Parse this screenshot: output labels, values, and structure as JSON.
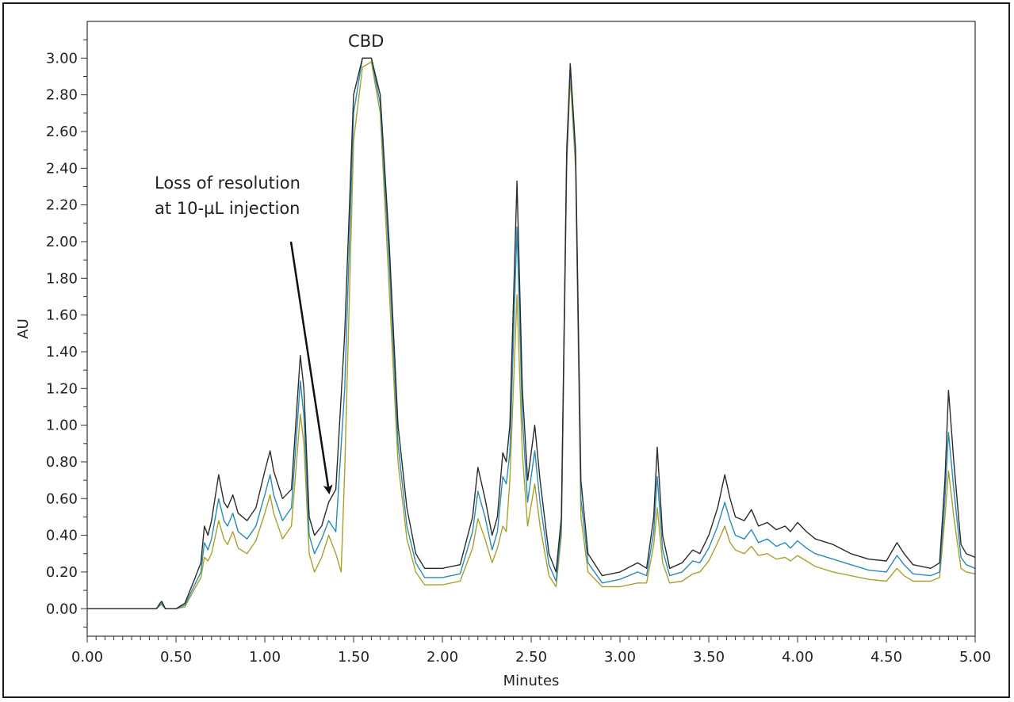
{
  "chart_data": {
    "type": "line",
    "title": "",
    "xlabel": "Minutes",
    "ylabel": "AU",
    "xlim": [
      0,
      5
    ],
    "ylim": [
      -0.15,
      3.2
    ],
    "x_ticks": [
      "0.00",
      "0.50",
      "1.00",
      "1.50",
      "2.00",
      "2.50",
      "3.00",
      "3.50",
      "4.00",
      "4.50",
      "5.00"
    ],
    "y_ticks": [
      "0.00",
      "0.20",
      "0.40",
      "0.60",
      "0.80",
      "1.00",
      "1.20",
      "1.40",
      "1.60",
      "1.80",
      "2.00",
      "2.20",
      "2.40",
      "2.60",
      "2.80",
      "3.00"
    ],
    "grid": false,
    "legend": "none",
    "series": [
      {
        "color": "#2b2b2b",
        "points": [
          [
            0,
            0
          ],
          [
            0.39,
            0
          ],
          [
            0.41,
            0.03
          ],
          [
            0.42,
            0.04
          ],
          [
            0.44,
            0
          ],
          [
            0.5,
            0
          ],
          [
            0.55,
            0.03
          ],
          [
            0.6,
            0.15
          ],
          [
            0.64,
            0.25
          ],
          [
            0.66,
            0.45
          ],
          [
            0.68,
            0.4
          ],
          [
            0.7,
            0.48
          ],
          [
            0.74,
            0.73
          ],
          [
            0.77,
            0.58
          ],
          [
            0.79,
            0.55
          ],
          [
            0.82,
            0.62
          ],
          [
            0.85,
            0.52
          ],
          [
            0.9,
            0.48
          ],
          [
            0.95,
            0.55
          ],
          [
            1.0,
            0.75
          ],
          [
            1.03,
            0.86
          ],
          [
            1.05,
            0.75
          ],
          [
            1.1,
            0.6
          ],
          [
            1.15,
            0.65
          ],
          [
            1.2,
            1.38
          ],
          [
            1.22,
            1.2
          ],
          [
            1.25,
            0.5
          ],
          [
            1.28,
            0.4
          ],
          [
            1.32,
            0.45
          ],
          [
            1.36,
            0.58
          ],
          [
            1.4,
            0.65
          ],
          [
            1.45,
            1.5
          ],
          [
            1.5,
            2.8
          ],
          [
            1.55,
            3.0
          ],
          [
            1.6,
            3.0
          ],
          [
            1.65,
            2.8
          ],
          [
            1.7,
            2.0
          ],
          [
            1.75,
            1.0
          ],
          [
            1.8,
            0.55
          ],
          [
            1.85,
            0.3
          ],
          [
            1.9,
            0.22
          ],
          [
            2.0,
            0.22
          ],
          [
            2.1,
            0.24
          ],
          [
            2.17,
            0.5
          ],
          [
            2.2,
            0.77
          ],
          [
            2.24,
            0.6
          ],
          [
            2.28,
            0.4
          ],
          [
            2.31,
            0.5
          ],
          [
            2.34,
            0.85
          ],
          [
            2.36,
            0.8
          ],
          [
            2.38,
            1.0
          ],
          [
            2.42,
            2.33
          ],
          [
            2.45,
            1.2
          ],
          [
            2.48,
            0.7
          ],
          [
            2.52,
            1.0
          ],
          [
            2.55,
            0.7
          ],
          [
            2.6,
            0.3
          ],
          [
            2.64,
            0.2
          ],
          [
            2.67,
            0.5
          ],
          [
            2.7,
            2.5
          ],
          [
            2.72,
            2.97
          ],
          [
            2.75,
            2.5
          ],
          [
            2.78,
            0.7
          ],
          [
            2.82,
            0.3
          ],
          [
            2.9,
            0.18
          ],
          [
            3.0,
            0.2
          ],
          [
            3.1,
            0.25
          ],
          [
            3.15,
            0.22
          ],
          [
            3.19,
            0.5
          ],
          [
            3.21,
            0.88
          ],
          [
            3.24,
            0.4
          ],
          [
            3.28,
            0.22
          ],
          [
            3.35,
            0.25
          ],
          [
            3.41,
            0.32
          ],
          [
            3.45,
            0.3
          ],
          [
            3.5,
            0.4
          ],
          [
            3.55,
            0.55
          ],
          [
            3.59,
            0.73
          ],
          [
            3.62,
            0.6
          ],
          [
            3.65,
            0.5
          ],
          [
            3.7,
            0.48
          ],
          [
            3.74,
            0.54
          ],
          [
            3.78,
            0.45
          ],
          [
            3.83,
            0.47
          ],
          [
            3.88,
            0.43
          ],
          [
            3.93,
            0.45
          ],
          [
            3.96,
            0.42
          ],
          [
            4.0,
            0.47
          ],
          [
            4.05,
            0.42
          ],
          [
            4.1,
            0.38
          ],
          [
            4.2,
            0.35
          ],
          [
            4.3,
            0.3
          ],
          [
            4.4,
            0.27
          ],
          [
            4.5,
            0.26
          ],
          [
            4.56,
            0.36
          ],
          [
            4.6,
            0.3
          ],
          [
            4.65,
            0.24
          ],
          [
            4.75,
            0.22
          ],
          [
            4.8,
            0.25
          ],
          [
            4.83,
            0.7
          ],
          [
            4.85,
            1.19
          ],
          [
            4.88,
            0.8
          ],
          [
            4.92,
            0.35
          ],
          [
            4.95,
            0.3
          ],
          [
            5.0,
            0.28
          ]
        ]
      },
      {
        "color": "#2a8ab4",
        "points": [
          [
            0,
            0
          ],
          [
            0.39,
            0
          ],
          [
            0.41,
            0.02
          ],
          [
            0.42,
            0.03
          ],
          [
            0.44,
            0
          ],
          [
            0.5,
            0
          ],
          [
            0.55,
            0.02
          ],
          [
            0.6,
            0.12
          ],
          [
            0.64,
            0.2
          ],
          [
            0.66,
            0.36
          ],
          [
            0.68,
            0.32
          ],
          [
            0.7,
            0.38
          ],
          [
            0.74,
            0.6
          ],
          [
            0.77,
            0.48
          ],
          [
            0.79,
            0.45
          ],
          [
            0.82,
            0.52
          ],
          [
            0.85,
            0.42
          ],
          [
            0.9,
            0.38
          ],
          [
            0.95,
            0.45
          ],
          [
            1.0,
            0.62
          ],
          [
            1.03,
            0.73
          ],
          [
            1.05,
            0.62
          ],
          [
            1.1,
            0.48
          ],
          [
            1.15,
            0.55
          ],
          [
            1.2,
            1.24
          ],
          [
            1.22,
            1.05
          ],
          [
            1.25,
            0.4
          ],
          [
            1.28,
            0.3
          ],
          [
            1.32,
            0.38
          ],
          [
            1.36,
            0.48
          ],
          [
            1.4,
            0.42
          ],
          [
            1.45,
            1.2
          ],
          [
            1.5,
            2.7
          ],
          [
            1.55,
            3.0
          ],
          [
            1.6,
            3.0
          ],
          [
            1.65,
            2.75
          ],
          [
            1.7,
            1.9
          ],
          [
            1.75,
            0.9
          ],
          [
            1.8,
            0.45
          ],
          [
            1.85,
            0.25
          ],
          [
            1.9,
            0.17
          ],
          [
            2.0,
            0.17
          ],
          [
            2.1,
            0.19
          ],
          [
            2.17,
            0.42
          ],
          [
            2.2,
            0.64
          ],
          [
            2.24,
            0.5
          ],
          [
            2.28,
            0.32
          ],
          [
            2.31,
            0.42
          ],
          [
            2.34,
            0.72
          ],
          [
            2.36,
            0.68
          ],
          [
            2.38,
            0.85
          ],
          [
            2.42,
            2.08
          ],
          [
            2.45,
            1.05
          ],
          [
            2.48,
            0.58
          ],
          [
            2.52,
            0.86
          ],
          [
            2.55,
            0.58
          ],
          [
            2.6,
            0.24
          ],
          [
            2.64,
            0.15
          ],
          [
            2.67,
            0.45
          ],
          [
            2.7,
            2.45
          ],
          [
            2.72,
            2.95
          ],
          [
            2.75,
            2.45
          ],
          [
            2.78,
            0.6
          ],
          [
            2.82,
            0.25
          ],
          [
            2.9,
            0.14
          ],
          [
            3.0,
            0.16
          ],
          [
            3.1,
            0.2
          ],
          [
            3.15,
            0.18
          ],
          [
            3.19,
            0.42
          ],
          [
            3.21,
            0.72
          ],
          [
            3.24,
            0.32
          ],
          [
            3.28,
            0.18
          ],
          [
            3.35,
            0.2
          ],
          [
            3.41,
            0.26
          ],
          [
            3.45,
            0.25
          ],
          [
            3.5,
            0.33
          ],
          [
            3.55,
            0.45
          ],
          [
            3.59,
            0.58
          ],
          [
            3.62,
            0.48
          ],
          [
            3.65,
            0.4
          ],
          [
            3.7,
            0.38
          ],
          [
            3.74,
            0.43
          ],
          [
            3.78,
            0.36
          ],
          [
            3.83,
            0.38
          ],
          [
            3.88,
            0.34
          ],
          [
            3.93,
            0.36
          ],
          [
            3.96,
            0.33
          ],
          [
            4.0,
            0.37
          ],
          [
            4.05,
            0.33
          ],
          [
            4.1,
            0.3
          ],
          [
            4.2,
            0.27
          ],
          [
            4.3,
            0.24
          ],
          [
            4.4,
            0.21
          ],
          [
            4.5,
            0.2
          ],
          [
            4.56,
            0.29
          ],
          [
            4.6,
            0.24
          ],
          [
            4.65,
            0.19
          ],
          [
            4.75,
            0.18
          ],
          [
            4.8,
            0.2
          ],
          [
            4.83,
            0.6
          ],
          [
            4.85,
            0.96
          ],
          [
            4.88,
            0.65
          ],
          [
            4.92,
            0.28
          ],
          [
            4.95,
            0.24
          ],
          [
            5.0,
            0.22
          ]
        ]
      },
      {
        "color": "#a9a02c",
        "points": [
          [
            0,
            0
          ],
          [
            0.39,
            0
          ],
          [
            0.41,
            0.02
          ],
          [
            0.42,
            0.02
          ],
          [
            0.44,
            0
          ],
          [
            0.5,
            0
          ],
          [
            0.55,
            0.01
          ],
          [
            0.6,
            0.1
          ],
          [
            0.64,
            0.17
          ],
          [
            0.66,
            0.28
          ],
          [
            0.68,
            0.26
          ],
          [
            0.7,
            0.3
          ],
          [
            0.74,
            0.48
          ],
          [
            0.77,
            0.38
          ],
          [
            0.79,
            0.35
          ],
          [
            0.82,
            0.42
          ],
          [
            0.85,
            0.33
          ],
          [
            0.9,
            0.3
          ],
          [
            0.95,
            0.37
          ],
          [
            1.0,
            0.52
          ],
          [
            1.03,
            0.62
          ],
          [
            1.05,
            0.52
          ],
          [
            1.1,
            0.38
          ],
          [
            1.15,
            0.45
          ],
          [
            1.2,
            1.06
          ],
          [
            1.22,
            0.9
          ],
          [
            1.25,
            0.3
          ],
          [
            1.28,
            0.2
          ],
          [
            1.32,
            0.28
          ],
          [
            1.36,
            0.4
          ],
          [
            1.4,
            0.3
          ],
          [
            1.43,
            0.2
          ],
          [
            1.45,
            0.75
          ],
          [
            1.5,
            2.55
          ],
          [
            1.55,
            2.95
          ],
          [
            1.6,
            2.98
          ],
          [
            1.65,
            2.7
          ],
          [
            1.7,
            1.75
          ],
          [
            1.75,
            0.8
          ],
          [
            1.8,
            0.38
          ],
          [
            1.85,
            0.2
          ],
          [
            1.9,
            0.13
          ],
          [
            2.0,
            0.13
          ],
          [
            2.1,
            0.15
          ],
          [
            2.17,
            0.33
          ],
          [
            2.2,
            0.49
          ],
          [
            2.24,
            0.38
          ],
          [
            2.28,
            0.25
          ],
          [
            2.31,
            0.33
          ],
          [
            2.34,
            0.45
          ],
          [
            2.36,
            0.42
          ],
          [
            2.38,
            0.7
          ],
          [
            2.42,
            1.71
          ],
          [
            2.45,
            0.85
          ],
          [
            2.48,
            0.45
          ],
          [
            2.52,
            0.68
          ],
          [
            2.55,
            0.45
          ],
          [
            2.6,
            0.18
          ],
          [
            2.64,
            0.12
          ],
          [
            2.67,
            0.4
          ],
          [
            2.7,
            2.4
          ],
          [
            2.72,
            2.9
          ],
          [
            2.75,
            2.4
          ],
          [
            2.78,
            0.5
          ],
          [
            2.82,
            0.2
          ],
          [
            2.9,
            0.12
          ],
          [
            3.0,
            0.12
          ],
          [
            3.1,
            0.14
          ],
          [
            3.15,
            0.14
          ],
          [
            3.19,
            0.35
          ],
          [
            3.21,
            0.55
          ],
          [
            3.24,
            0.25
          ],
          [
            3.28,
            0.14
          ],
          [
            3.35,
            0.15
          ],
          [
            3.41,
            0.19
          ],
          [
            3.45,
            0.2
          ],
          [
            3.5,
            0.26
          ],
          [
            3.55,
            0.36
          ],
          [
            3.59,
            0.45
          ],
          [
            3.62,
            0.36
          ],
          [
            3.65,
            0.32
          ],
          [
            3.7,
            0.3
          ],
          [
            3.74,
            0.34
          ],
          [
            3.78,
            0.29
          ],
          [
            3.83,
            0.3
          ],
          [
            3.88,
            0.27
          ],
          [
            3.93,
            0.28
          ],
          [
            3.96,
            0.26
          ],
          [
            4.0,
            0.29
          ],
          [
            4.05,
            0.26
          ],
          [
            4.1,
            0.23
          ],
          [
            4.2,
            0.2
          ],
          [
            4.3,
            0.18
          ],
          [
            4.4,
            0.16
          ],
          [
            4.5,
            0.15
          ],
          [
            4.56,
            0.22
          ],
          [
            4.6,
            0.18
          ],
          [
            4.65,
            0.15
          ],
          [
            4.75,
            0.15
          ],
          [
            4.8,
            0.17
          ],
          [
            4.83,
            0.5
          ],
          [
            4.85,
            0.75
          ],
          [
            4.88,
            0.5
          ],
          [
            4.92,
            0.22
          ],
          [
            4.95,
            0.2
          ],
          [
            5.0,
            0.19
          ]
        ]
      }
    ],
    "annotations": [
      {
        "text": "CBD"
      },
      {
        "lines": [
          "Loss of resolution",
          "at 10-µL injection"
        ]
      }
    ]
  }
}
